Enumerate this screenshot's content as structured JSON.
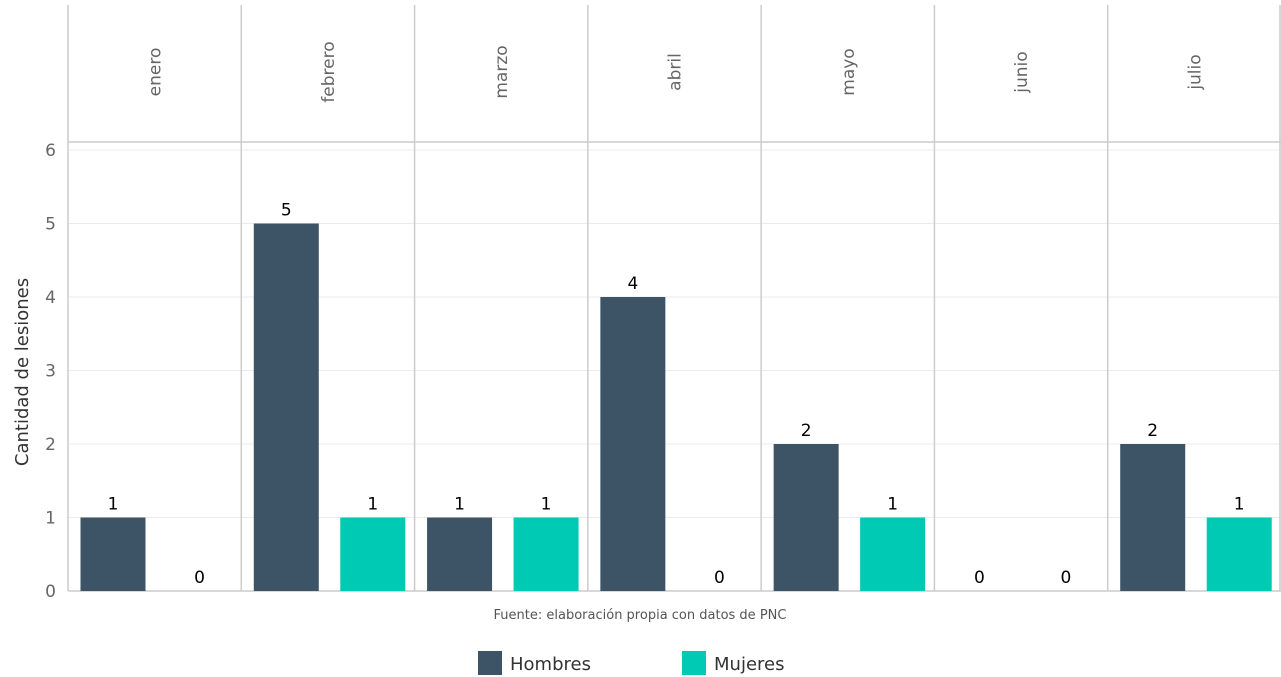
{
  "chart_data": {
    "type": "bar",
    "facets": [
      "enero",
      "febrero",
      "marzo",
      "abril",
      "mayo",
      "junio",
      "julio"
    ],
    "series": [
      {
        "name": "Hombres",
        "color": "#3d5466",
        "values": [
          1,
          5,
          1,
          4,
          2,
          0,
          2
        ]
      },
      {
        "name": "Mujeres",
        "color": "#00c9b4",
        "values": [
          0,
          1,
          1,
          0,
          1,
          0,
          1
        ]
      }
    ],
    "ylabel": "Cantidad de lesiones",
    "ylim": [
      0,
      6
    ],
    "yticks": [
      "0",
      "1",
      "2",
      "3",
      "4",
      "5",
      "6"
    ],
    "caption": "Fuente: elaboración propia con datos de PNC",
    "legend": {
      "position": "bottom"
    },
    "grid": true
  }
}
